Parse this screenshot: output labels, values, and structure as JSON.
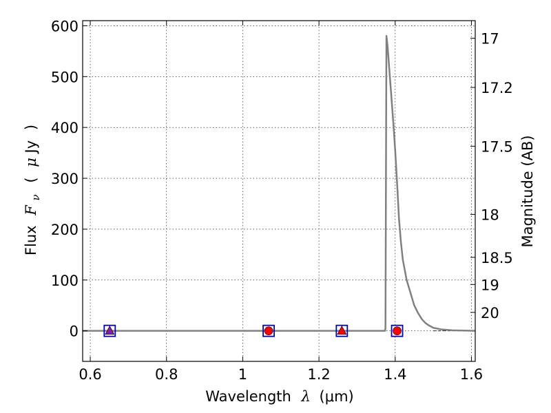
{
  "chart_data": {
    "type": "line",
    "xlabel": "Wavelength  λ (μm)",
    "ylabel": "Flux  F_ν  ( μJy )",
    "ylabel_parts": {
      "flux": "Flux",
      "symbol": "F",
      "subscript": "ν",
      "open": "(",
      "mu": "μ",
      "unit": "Jy",
      "close": ")"
    },
    "xlabel_parts": {
      "text": "Wavelength",
      "symbol": "λ",
      "unit": "(μm)"
    },
    "y2label": "Magnitude (AB)",
    "xlim": [
      0.58,
      1.61
    ],
    "ylim": [
      -60,
      610
    ],
    "grid": true,
    "x_ticks": [
      {
        "v": 0.6,
        "label": "0.6"
      },
      {
        "v": 0.8,
        "label": "0.8"
      },
      {
        "v": 1.0,
        "label": "1"
      },
      {
        "v": 1.2,
        "label": "1.2"
      },
      {
        "v": 1.4,
        "label": "1.4"
      },
      {
        "v": 1.6,
        "label": "1.6"
      }
    ],
    "y_ticks": [
      {
        "v": 0,
        "label": "0"
      },
      {
        "v": 100,
        "label": "100"
      },
      {
        "v": 200,
        "label": "200"
      },
      {
        "v": 300,
        "label": "300"
      },
      {
        "v": 400,
        "label": "400"
      },
      {
        "v": 500,
        "label": "500"
      },
      {
        "v": 600,
        "label": "600"
      }
    ],
    "magnitude_ticks": [
      {
        "mag": 17,
        "label": "17"
      },
      {
        "mag": 17.2,
        "label": "17.2"
      },
      {
        "mag": 17.5,
        "label": "17.5"
      },
      {
        "mag": 18,
        "label": "18"
      },
      {
        "mag": 18.5,
        "label": "18.5"
      },
      {
        "mag": 19,
        "label": "19"
      },
      {
        "mag": 20,
        "label": "20"
      }
    ],
    "series": [
      {
        "color": "#808080",
        "x": [
          0.58,
          1.373,
          1.3745,
          1.377,
          1.38,
          1.385,
          1.39,
          1.395,
          1.4,
          1.405,
          1.41,
          1.415,
          1.42,
          1.43,
          1.44,
          1.45,
          1.46,
          1.47,
          1.48,
          1.49,
          1.5,
          1.52,
          1.55,
          1.61
        ],
        "y": [
          0,
          0,
          5,
          580,
          560,
          510,
          460,
          410,
          355,
          290,
          220,
          175,
          140,
          100,
          75,
          50,
          35,
          23,
          15,
          10,
          6,
          3,
          1,
          0
        ]
      }
    ],
    "points": [
      {
        "x": 0.651,
        "y": 0,
        "shape": "triangle",
        "fill": "#8B1A9E",
        "box_color": "#0000CC"
      },
      {
        "x": 1.068,
        "y": 0,
        "shape": "circle",
        "fill": "#FF0000",
        "box_color": "#0000CC"
      },
      {
        "x": 1.26,
        "y": 0,
        "shape": "triangle",
        "fill": "#FF0000",
        "box_color": "#0000CC"
      },
      {
        "x": 1.405,
        "y": 0,
        "shape": "circle",
        "fill": "#FF0000",
        "box_color": "#0000CC"
      }
    ],
    "dashed_line": {
      "y": 0,
      "x_from": 1.5,
      "x_to": 1.61,
      "color": "#000000"
    }
  }
}
